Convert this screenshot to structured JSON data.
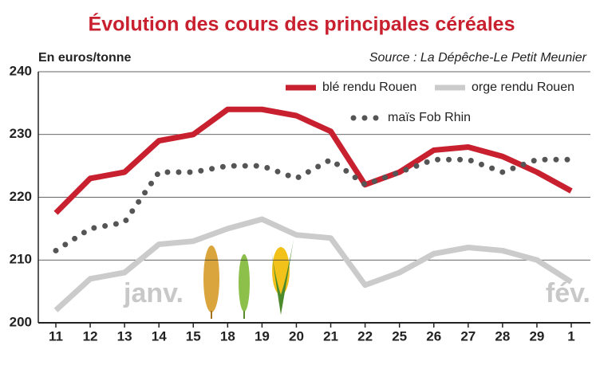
{
  "chart_data": {
    "type": "line",
    "title": "Évolution des cours des principales céréales",
    "y_label": "En euros/tonne",
    "source": "Source : La Dépêche-Le Petit Meunier",
    "categories": [
      "11",
      "12",
      "13",
      "14",
      "15",
      "18",
      "19",
      "20",
      "21",
      "22",
      "25",
      "26",
      "27",
      "28",
      "29",
      "1"
    ],
    "series": [
      {
        "name": "blé rendu Rouen",
        "color": "#c8202f",
        "style": "solid",
        "values": [
          217.5,
          223,
          224,
          229,
          230,
          234,
          234,
          233,
          230.5,
          222,
          224,
          227.5,
          228,
          226.5,
          224,
          221
        ]
      },
      {
        "name": "orge rendu Rouen",
        "color": "#cbcbcb",
        "style": "solid",
        "values": [
          202,
          207,
          208,
          212.5,
          213,
          215,
          216.5,
          214,
          213.5,
          206,
          208,
          211,
          212,
          211.5,
          210,
          206.5
        ]
      },
      {
        "name": "maïs Fob Rhin",
        "color": "#555555",
        "style": "dotted",
        "values": [
          211.5,
          215,
          216,
          224,
          224,
          225,
          225,
          223,
          226,
          222,
          224,
          226,
          226,
          224,
          226,
          226
        ]
      }
    ],
    "annotations": [
      "janv.",
      "fév."
    ],
    "ylim": [
      200,
      240
    ],
    "yticks": [
      200,
      210,
      220,
      230,
      240
    ],
    "grid": true
  }
}
